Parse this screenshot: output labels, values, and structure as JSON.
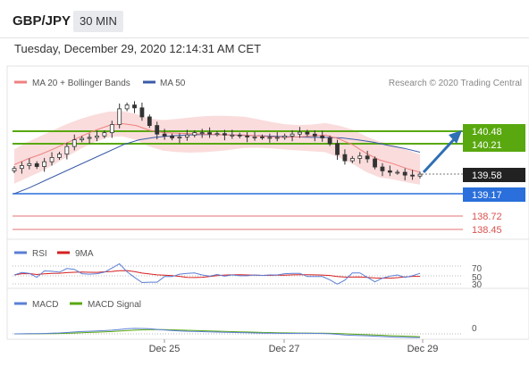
{
  "header": {
    "pair": "GBP/JPY",
    "interval": "30 MIN",
    "datetime": "Tuesday, December 29, 2020 12:14:31 AM CET"
  },
  "price_panel": {
    "legend_ma20": "MA 20 + Bollinger Bands",
    "legend_ma50": "MA 50",
    "credit": "Research © 2020 Trading Central",
    "colors": {
      "candle": "#333333",
      "ma20": "#f08080",
      "ma50": "#3a5ba8",
      "bands": "#f9d3d3",
      "resistance": "#59a80f",
      "support": "#2a6fdb",
      "support_weak": "#e57373",
      "arrow": "#2f6fb3"
    }
  },
  "rsi_panel": {
    "legend_rsi": "RSI",
    "legend_9ma": "9MA",
    "ticks": [
      "70",
      "50",
      "30"
    ]
  },
  "macd_panel": {
    "legend_macd": "MACD",
    "legend_signal": "MACD Signal",
    "tick_zero": "0"
  },
  "x_axis": [
    "Dec 25",
    "Dec 27",
    "Dec 29"
  ],
  "chart_data": {
    "type": "line",
    "title": "GBP/JPY 30 MIN",
    "y_range": [
      138.3,
      141.4
    ],
    "x_ticks": [
      "Dec 25",
      "Dec 27",
      "Dec 29"
    ],
    "levels": [
      {
        "label": "140.48",
        "value": 140.48,
        "kind": "resistance"
      },
      {
        "label": "140.21",
        "value": 140.21,
        "kind": "resistance"
      },
      {
        "label": "139.58",
        "value": 139.58,
        "kind": "last"
      },
      {
        "label": "139.17",
        "value": 139.17,
        "kind": "support"
      },
      {
        "label": "138.72",
        "value": 138.72,
        "kind": "support"
      },
      {
        "label": "138.45",
        "value": 138.45,
        "kind": "support"
      }
    ],
    "close_series": [
      139.7,
      139.76,
      139.8,
      139.74,
      139.84,
      139.93,
      140.0,
      140.16,
      140.3,
      140.33,
      140.35,
      140.38,
      140.45,
      140.62,
      140.95,
      141.03,
      140.97,
      140.78,
      140.6,
      140.42,
      140.38,
      140.34,
      140.36,
      140.4,
      140.45,
      140.45,
      140.42,
      140.43,
      140.4,
      140.4,
      140.38,
      140.36,
      140.36,
      140.35,
      140.35,
      140.35,
      140.38,
      140.42,
      140.46,
      140.42,
      140.38,
      140.34,
      140.22,
      139.99,
      139.86,
      139.91,
      139.96,
      139.9,
      139.73,
      139.65,
      139.62,
      139.62,
      139.56,
      139.54,
      139.58
    ],
    "ma20_series": [
      139.78,
      139.9,
      140.0,
      140.12,
      140.25,
      140.38,
      140.5,
      140.6,
      140.64,
      140.6,
      140.5,
      140.45,
      140.44,
      140.43,
      140.42,
      140.41,
      140.4,
      140.4,
      140.38,
      140.36,
      140.35,
      140.36,
      140.38,
      140.4,
      140.32,
      140.2,
      140.02,
      139.88,
      139.8,
      139.7,
      139.62
    ],
    "ma50_series": [
      139.17,
      139.3,
      139.45,
      139.6,
      139.75,
      139.9,
      140.05,
      140.2,
      140.3,
      140.35,
      140.38,
      140.4,
      140.41,
      140.41,
      140.4,
      140.39,
      140.38,
      140.37,
      140.36,
      140.35,
      140.35,
      140.34,
      140.3,
      140.25,
      140.18,
      140.12,
      140.04
    ],
    "rsi": {
      "ticks": [
        70,
        50,
        30
      ]
    },
    "macd": {
      "ticks": [
        0
      ]
    }
  }
}
